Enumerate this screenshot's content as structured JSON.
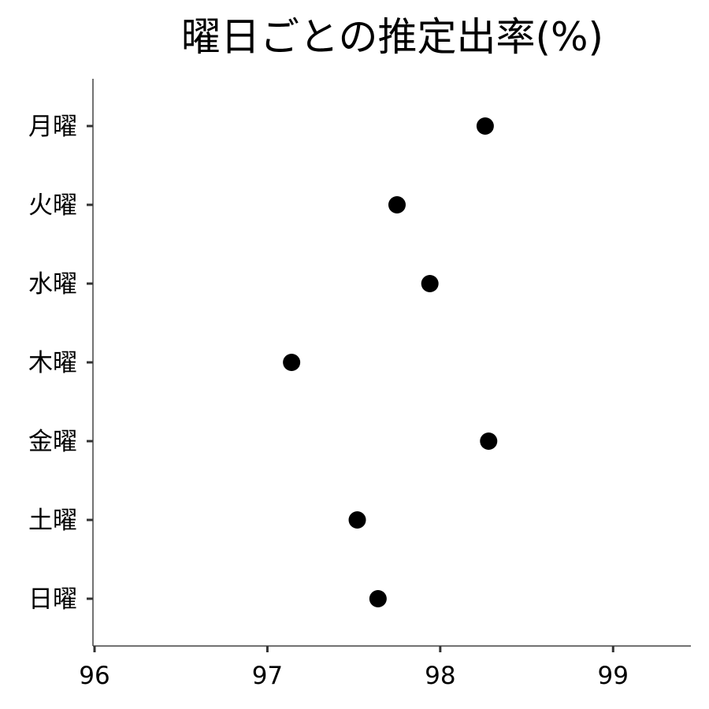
{
  "chart_data": {
    "type": "scatter",
    "title": "曜日ごとの推定出率(%)",
    "xlabel": "",
    "ylabel": "",
    "categories": [
      "月曜",
      "火曜",
      "水曜",
      "木曜",
      "金曜",
      "土曜",
      "日曜"
    ],
    "values": [
      98.26,
      97.75,
      97.94,
      97.14,
      98.28,
      97.52,
      97.64
    ],
    "xlim": [
      96,
      99.45
    ],
    "xticks": [
      "96",
      "97",
      "98",
      "99"
    ],
    "grid": false,
    "point_color": "#000000"
  }
}
